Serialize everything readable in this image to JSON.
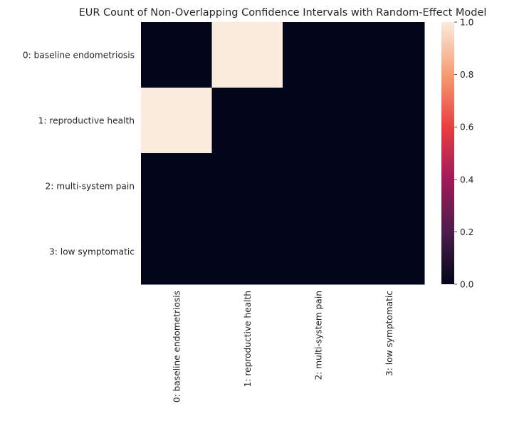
{
  "chart_data": {
    "type": "heatmap",
    "title": "EUR Count of Non-Overlapping Confidence Intervals with Random-Effect Model",
    "xlabel": "",
    "ylabel": "",
    "rows": [
      "0: baseline endometriosis",
      "1: reproductive health",
      "2: multi-system pain",
      "3: low symptomatic"
    ],
    "columns": [
      "0: baseline endometriosis",
      "1: reproductive health",
      "2: multi-system pain",
      "3: low symptomatic"
    ],
    "values": [
      [
        0,
        1,
        0,
        0
      ],
      [
        1,
        0,
        0,
        0
      ],
      [
        0,
        0,
        0,
        0
      ],
      [
        0,
        0,
        0,
        0
      ]
    ],
    "colorbar": {
      "range": [
        0.0,
        1.0
      ],
      "ticks": [
        "0.0",
        "0.2",
        "0.4",
        "0.6",
        "0.8",
        "1.0"
      ],
      "colormap": "rocket"
    },
    "grid": false,
    "legend": "colorbar-right"
  }
}
